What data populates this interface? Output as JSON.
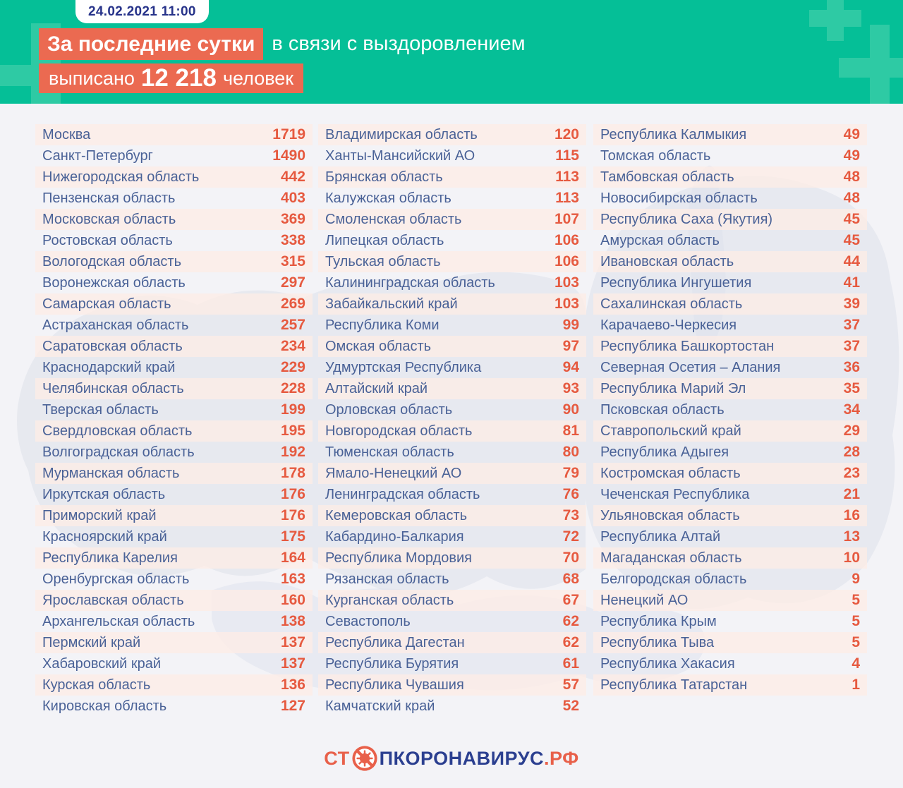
{
  "badge": {
    "datetime": "24.02.2021 11:00"
  },
  "header": {
    "line1_highlight": "За последние сутки",
    "line1_rest": "в связи с выздоровлением",
    "line2_prefix": "выписано",
    "line2_value": "12 218",
    "line2_suffix": "человек"
  },
  "footer": {
    "logo_st": "СТ",
    "logo_middle": "ПКОРОНАВИРУС",
    "logo_tld": ".РФ",
    "icon": "no-virus-icon"
  },
  "colors": {
    "teal": "#05bf97",
    "teal_light": "#2ecaa4",
    "orange_highlight": "#eb6a51",
    "orange_number": "#e65a40",
    "navy_date": "#27338a",
    "navy_logo": "#2b3f90",
    "region_text": "#4a6297",
    "page_bg": "#f3f3f7",
    "stripe_pink": "#fcecE6",
    "map_gray": "#dce0ea"
  },
  "chart_data": {
    "type": "table",
    "title": "За последние сутки в связи с выздоровлением выписано 12 218 человек",
    "timestamp": "24.02.2021 11:00",
    "total_discharged_last_24h": 12218,
    "columns": [
      "region",
      "discharged_last_24h"
    ],
    "column_breaks": [
      28,
      28,
      27
    ],
    "rows": [
      [
        "Москва",
        1719
      ],
      [
        "Санкт-Петербург",
        1490
      ],
      [
        "Нижегородская область",
        442
      ],
      [
        "Пензенская область",
        403
      ],
      [
        "Московская область",
        369
      ],
      [
        "Ростовская область",
        338
      ],
      [
        "Вологодская область",
        315
      ],
      [
        "Воронежская область",
        297
      ],
      [
        "Самарская область",
        269
      ],
      [
        "Астраханская область",
        257
      ],
      [
        "Саратовская область",
        234
      ],
      [
        "Краснодарский край",
        229
      ],
      [
        "Челябинская область",
        228
      ],
      [
        "Тверская область",
        199
      ],
      [
        "Свердловская область",
        195
      ],
      [
        "Волгоградская область",
        192
      ],
      [
        "Мурманская область",
        178
      ],
      [
        "Иркутская область",
        176
      ],
      [
        "Приморский край",
        176
      ],
      [
        "Красноярский край",
        175
      ],
      [
        "Республика Карелия",
        164
      ],
      [
        "Оренбургская область",
        163
      ],
      [
        "Ярославская область",
        160
      ],
      [
        "Архангельская область",
        138
      ],
      [
        "Пермский край",
        137
      ],
      [
        "Хабаровский край",
        137
      ],
      [
        "Курская область",
        136
      ],
      [
        "Кировская область",
        127
      ],
      [
        "Владимирская область",
        120
      ],
      [
        "Ханты-Мансийский АО",
        115
      ],
      [
        "Брянская область",
        113
      ],
      [
        "Калужская область",
        113
      ],
      [
        "Смоленская область",
        107
      ],
      [
        "Липецкая область",
        106
      ],
      [
        "Тульская область",
        106
      ],
      [
        "Калининградская область",
        103
      ],
      [
        "Забайкальский край",
        103
      ],
      [
        "Республика Коми",
        99
      ],
      [
        "Омская область",
        97
      ],
      [
        "Удмуртская Республика",
        94
      ],
      [
        "Алтайский край",
        93
      ],
      [
        "Орловская область",
        90
      ],
      [
        "Новгородская область",
        81
      ],
      [
        "Тюменская область",
        80
      ],
      [
        "Ямало-Ненецкий АО",
        79
      ],
      [
        "Ленинградская область",
        76
      ],
      [
        "Кемеровская область",
        73
      ],
      [
        "Кабардино-Балкария",
        72
      ],
      [
        "Республика Мордовия",
        70
      ],
      [
        "Рязанская область",
        68
      ],
      [
        "Курганская область",
        67
      ],
      [
        "Севастополь",
        62
      ],
      [
        "Республика Дагестан",
        62
      ],
      [
        "Республика Бурятия",
        61
      ],
      [
        "Республика Чувашия",
        57
      ],
      [
        "Камчатский край",
        52
      ],
      [
        "Республика Калмыкия",
        49
      ],
      [
        "Томская область",
        49
      ],
      [
        "Тамбовская область",
        48
      ],
      [
        "Новосибирская область",
        48
      ],
      [
        "Республика Саха (Якутия)",
        45
      ],
      [
        "Амурская область",
        45
      ],
      [
        "Ивановская область",
        44
      ],
      [
        "Республика Ингушетия",
        41
      ],
      [
        "Сахалинская область",
        39
      ],
      [
        "Карачаево-Черкесия",
        37
      ],
      [
        "Республика Башкортостан",
        37
      ],
      [
        "Северная Осетия – Алания",
        36
      ],
      [
        "Республика Марий Эл",
        35
      ],
      [
        "Псковская область",
        34
      ],
      [
        "Ставропольский край",
        29
      ],
      [
        "Республика Адыгея",
        28
      ],
      [
        "Костромская область",
        23
      ],
      [
        "Чеченская Республика",
        21
      ],
      [
        "Ульяновская область",
        16
      ],
      [
        "Республика Алтай",
        13
      ],
      [
        "Магаданская область",
        10
      ],
      [
        "Белгородская область",
        9
      ],
      [
        "Ненецкий АО",
        5
      ],
      [
        "Республика Крым",
        5
      ],
      [
        "Республика Тыва",
        5
      ],
      [
        "Республика Хакасия",
        4
      ],
      [
        "Республика Татарстан",
        1
      ]
    ]
  }
}
